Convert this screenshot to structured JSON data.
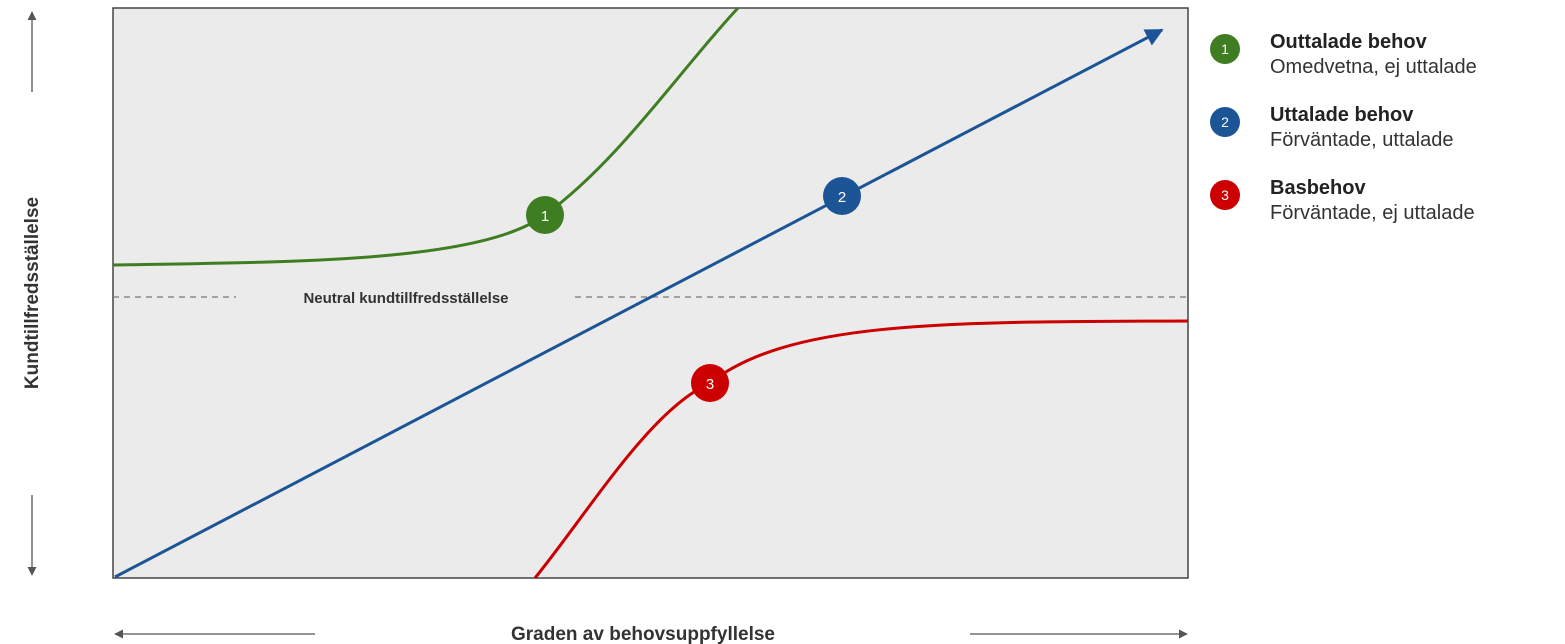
{
  "axes": {
    "y_title": "Kundtillfredsställelse",
    "x_title": "Graden av behovsuppfyllelse"
  },
  "neutral_label": "Neutral kundtillfredsställelse",
  "colors": {
    "background": "#ebebeb",
    "frame": "#444444",
    "curve1": "#3f7d23",
    "curve2": "#1b5596",
    "curve3": "#cc0000",
    "axis_arrow": "#555555",
    "dashed": "#777777"
  },
  "curves": [
    {
      "id": "1",
      "color": "#3f7d23"
    },
    {
      "id": "2",
      "color": "#1b5596"
    },
    {
      "id": "3",
      "color": "#cc0000"
    }
  ],
  "legend": [
    {
      "number": "1",
      "title": "Outtalade behov",
      "subtitle": "Omedvetna, ej uttalade",
      "color": "#3f7d23"
    },
    {
      "number": "2",
      "title": "Uttalade behov",
      "subtitle": "Förväntade, uttalade",
      "color": "#1b5596"
    },
    {
      "number": "3",
      "title": "Basbehov",
      "subtitle": "Förväntade, ej uttalade",
      "color": "#cc0000"
    }
  ]
}
